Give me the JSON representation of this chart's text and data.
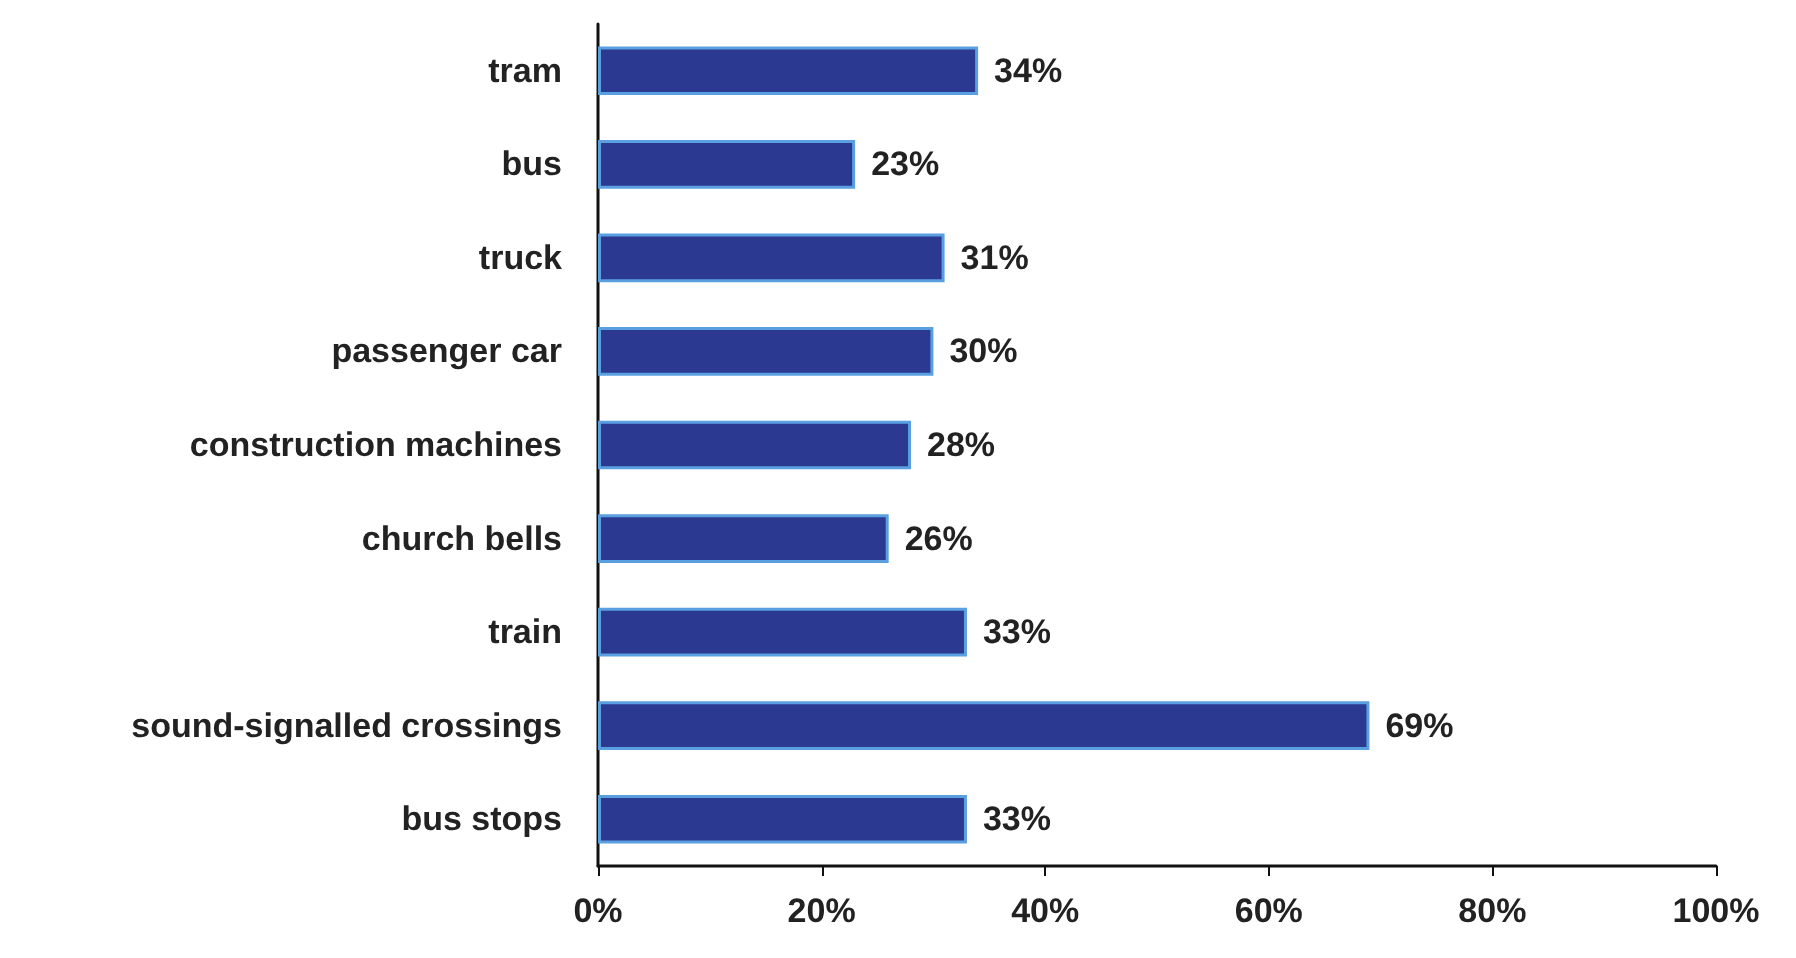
{
  "chart_data": {
    "type": "bar",
    "orientation": "horizontal",
    "categories": [
      "tram",
      "bus",
      "truck",
      "passenger car",
      "construction machines",
      "church bells",
      "train",
      "sound-signalled crossings",
      "bus stops"
    ],
    "values": [
      34,
      23,
      31,
      30,
      28,
      26,
      33,
      69,
      33
    ],
    "value_labels": [
      "34%",
      "23%",
      "31%",
      "30%",
      "28%",
      "26%",
      "33%",
      "69%",
      "33%"
    ],
    "color": "#2b3990",
    "xlim": [
      0,
      100
    ],
    "xticks": [
      {
        "value": 0,
        "label": "0%"
      },
      {
        "value": 20,
        "label": "20%"
      },
      {
        "value": 40,
        "label": "40%"
      },
      {
        "value": 60,
        "label": "60%"
      },
      {
        "value": 80,
        "label": "80%"
      },
      {
        "value": 100,
        "label": "100%"
      }
    ],
    "grid": false
  }
}
